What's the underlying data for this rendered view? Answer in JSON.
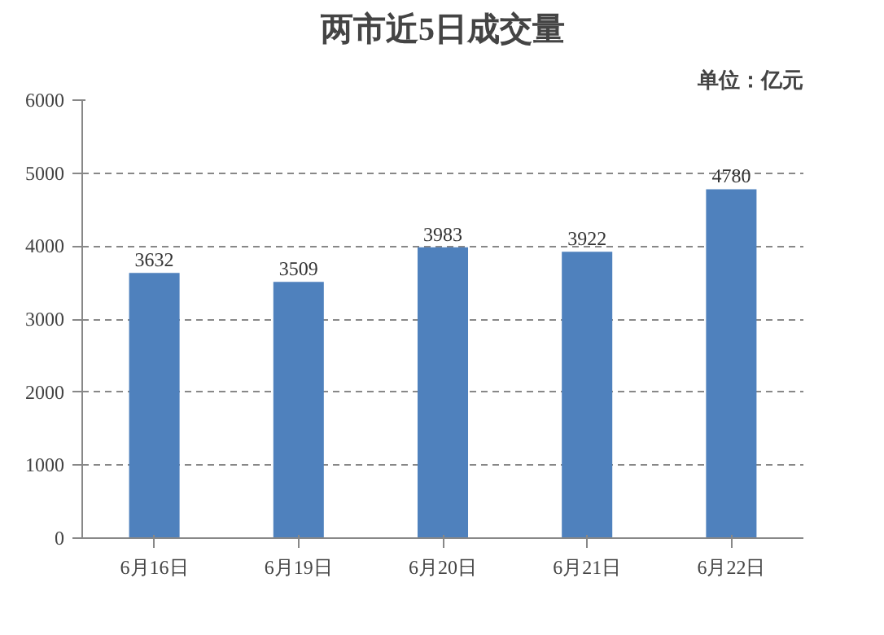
{
  "chart_data": {
    "type": "bar",
    "title": "两市近5日成交量",
    "annotations": [
      "单位：亿元"
    ],
    "categories": [
      "6月16日",
      "6月19日",
      "6月20日",
      "6月21日",
      "6月22日"
    ],
    "values": [
      3632,
      3509,
      3983,
      3922,
      4780
    ],
    "color": "#4f81bd",
    "ylim": [
      0,
      6000
    ],
    "yticks": [
      0,
      1000,
      2000,
      3000,
      4000,
      5000,
      6000
    ],
    "grid": "y",
    "data_labels": true
  }
}
